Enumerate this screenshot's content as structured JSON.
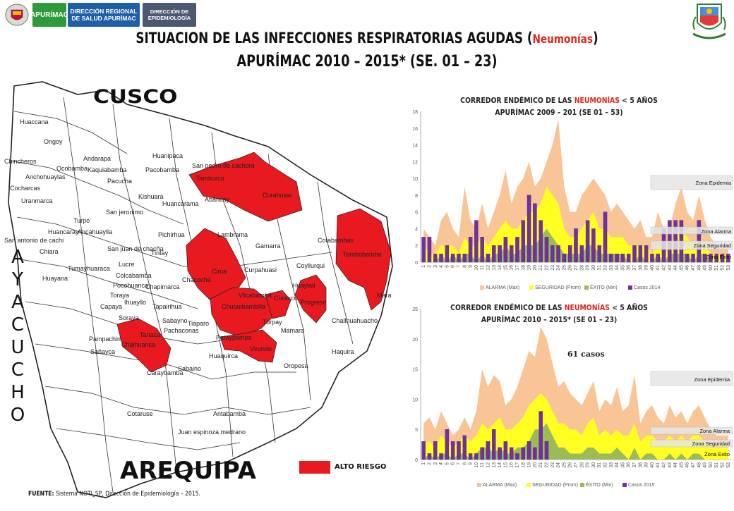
{
  "header": {
    "logo_apurimac": "APURÍMAC",
    "logo_diresa_line1": "DIRECCIÓN REGIONAL",
    "logo_diresa_line2": "DE SALUD APURÍMAC",
    "logo_epi_line1": "DIRECCIÓN DE",
    "logo_epi_line2": "EPIDEMIOLOGÍA",
    "title_line1_pre": "SITUACION DE LAS INFECCIONES RESPIRATORIAS AGUDAS (",
    "title_line1_red": "Neumonías",
    "title_line1_post": ")",
    "title_line2": "APURÍMAC 2010 – 2015*  (SE. 01 – 23)"
  },
  "map": {
    "region_north": "CUSCO",
    "region_south": "AREQUIPA",
    "region_west_letters": [
      "A",
      "Y",
      "A",
      "C",
      "U",
      "C",
      "H",
      "O"
    ],
    "legend_label": "ALTO RIESGO",
    "legend_color": "#e8191f",
    "district_labels": [
      "Huaccana",
      "Ongoy",
      "Chincheros",
      "Ocobamba",
      "Andarapa",
      "Kaquiabamba",
      "Huanipaca",
      "San pedro de cachora",
      "Anchohuaylas",
      "Cocharcas",
      "Uranmarca",
      "Pacucha",
      "Pacobamba",
      "Tamburco",
      "Curahuasi",
      "Abancay",
      "Kishuara",
      "Huancarama",
      "Turpo",
      "San jeronimo",
      "Huancaray",
      "Ancahuaylla",
      "San antonio de cachi",
      "Pichirhua",
      "Lambrama",
      "Chiara",
      "San juan de chacña",
      "Tintay",
      "Gamarra",
      "Cotabambas",
      "Tambobamba",
      "Huayana",
      "Tumayhuaraca",
      "Lucre",
      "Colcabamba",
      "Pocohuanca",
      "Circa",
      "Curpahuasi",
      "Coyllurqui",
      "Toraya",
      "Chapimarca",
      "Chacoche",
      "Huaylati",
      "Mara",
      "Chuquibambilla",
      "Vilcabamba",
      "Curasco",
      "Progreso",
      "Soraya",
      "Capaya",
      "Ihuayllo",
      "Tapairihua",
      "Sabayno",
      "Tiaparo",
      "Pachaconas",
      "Turpay",
      "Mamara",
      "Challhuahuacho",
      "Pampachiri",
      "Sañayca",
      "Tanaca",
      "Chalhuanca",
      "Pataypampa",
      "Virundo",
      "Haquira",
      "Caraybamba",
      "Sabaino",
      "Huaquirca",
      "Oropesa",
      "Antabamba",
      "Cotaruse",
      "Juan espinoza medrano"
    ]
  },
  "legend_common": {
    "alarma": "ALARMA (Max)",
    "seguridad": "SEGURIDAD (Prom)",
    "exito": "ÉXITO (Min)"
  },
  "zones": {
    "epidemia": "Zona Epidemia",
    "alarma": "Zona Alarma",
    "seguridad": "Zona Seguridad",
    "exito": "Zona Exito"
  },
  "colors": {
    "alarma": "#f9c596",
    "seguridad": "#ffff21",
    "exito": "#9bbb59",
    "casos": "#7030a0",
    "highrisk": "#e8191f",
    "zone_box": "#e5e5e5"
  },
  "footer": {
    "source_label": "FUENTE:",
    "source_text": "Sistema NOTI_SP, Dirección de Epidemiología – 2015."
  },
  "chart_data": [
    {
      "type": "area",
      "title_pre": "CORREDOR ENDÉMICO DE LAS ",
      "title_red": "NEUMONÍAS",
      "title_post": " < 5 AÑOS",
      "title_line2": "APURÍMAC 2009 – 201 (SE  01 – 53)",
      "ylim": [
        0,
        18
      ],
      "yticks": [
        0,
        2,
        4,
        6,
        8,
        10,
        12,
        14,
        16,
        18
      ],
      "x": [
        1,
        2,
        3,
        4,
        5,
        6,
        7,
        8,
        9,
        10,
        11,
        12,
        13,
        14,
        15,
        16,
        17,
        18,
        19,
        20,
        21,
        22,
        23,
        24,
        25,
        26,
        27,
        28,
        29,
        30,
        31,
        32,
        33,
        34,
        35,
        36,
        37,
        38,
        39,
        40,
        41,
        42,
        43,
        44,
        45,
        46,
        47,
        48,
        49,
        50,
        51,
        52,
        53
      ],
      "legend_casos": "Casos 2014",
      "series": [
        {
          "name": "ALARMA (Max)",
          "values": [
            4,
            3,
            2,
            5,
            6,
            4,
            3,
            9,
            5,
            4,
            7,
            4,
            6,
            8,
            11,
            7,
            9,
            10,
            12,
            9,
            10,
            12,
            14,
            17,
            9,
            6,
            6,
            8,
            9,
            10,
            9,
            8,
            6,
            7,
            6,
            5,
            4,
            5,
            3,
            3,
            6,
            4,
            4,
            7,
            9,
            6,
            5,
            8,
            5,
            3,
            2,
            2,
            2
          ]
        },
        {
          "name": "SEGURIDAD (Prom)",
          "values": [
            2,
            1,
            1,
            2,
            2,
            2,
            1,
            3,
            2,
            2,
            3,
            2,
            3,
            4,
            5,
            4,
            4,
            5,
            6,
            6,
            7,
            9,
            8,
            7,
            4,
            3,
            3,
            4,
            5,
            6,
            4,
            4,
            3,
            3,
            3,
            2,
            2,
            2,
            2,
            1,
            2,
            2,
            2,
            3,
            4,
            3,
            2,
            3,
            2,
            1,
            1,
            1,
            1
          ]
        },
        {
          "name": "ÉXITO (Min)",
          "values": [
            0,
            0,
            0,
            1,
            0,
            1,
            0,
            1,
            1,
            0,
            1,
            0,
            1,
            1,
            2,
            1,
            1,
            2,
            2,
            2,
            3,
            4,
            3,
            2,
            1,
            1,
            1,
            1,
            2,
            2,
            1,
            1,
            1,
            1,
            1,
            0,
            0,
            1,
            0,
            0,
            1,
            0,
            1,
            1,
            1,
            1,
            0,
            1,
            1,
            0,
            0,
            0,
            0
          ]
        },
        {
          "name": "Casos 2014",
          "values": [
            3,
            3,
            1,
            1,
            2,
            1,
            1,
            1,
            3,
            5,
            3,
            1,
            2,
            2,
            3,
            2,
            3,
            5,
            8,
            7,
            5,
            3,
            2,
            2,
            1,
            2,
            4,
            2,
            5,
            4,
            2,
            6,
            1,
            1,
            1,
            1,
            2,
            2,
            2,
            1,
            1,
            4,
            5,
            5,
            5,
            1,
            1,
            5,
            1,
            1,
            1,
            1,
            1
          ]
        }
      ],
      "zones": [
        "Zona Epidemia",
        "Zona Alarma",
        "Zona Seguridad",
        "Zona Exito"
      ]
    },
    {
      "type": "area",
      "title_pre": "CORREDOR ENDÉMICO DE LAS ",
      "title_red": "NEUMONÍAS",
      "title_post": " < 5 AÑOS",
      "title_line2": "APURÍMAC 2010 – 2015* (SE  01 – 23)",
      "annotation": "61 casos",
      "ylim": [
        0,
        25
      ],
      "yticks": [
        0,
        5,
        10,
        15,
        20,
        25
      ],
      "x": [
        1,
        2,
        3,
        4,
        5,
        6,
        7,
        8,
        9,
        10,
        11,
        12,
        13,
        14,
        15,
        16,
        17,
        18,
        19,
        20,
        21,
        22,
        23,
        24,
        25,
        26,
        27,
        28,
        29,
        30,
        31,
        32,
        33,
        34,
        35,
        36,
        37,
        38,
        39,
        40,
        41,
        42,
        43,
        44,
        45,
        46,
        47,
        48,
        49,
        50,
        51,
        52,
        53
      ],
      "legend_casos": "Casos 2015",
      "series": [
        {
          "name": "ALARMA (Max)",
          "values": [
            6,
            7,
            5,
            8,
            6,
            4,
            5,
            7,
            5,
            8,
            15,
            12,
            14,
            13,
            9,
            10,
            12,
            15,
            18,
            17,
            22,
            20,
            16,
            12,
            13,
            11,
            10,
            9,
            11,
            13,
            8,
            10,
            9,
            12,
            8,
            9,
            14,
            6,
            8,
            9,
            7,
            6,
            9,
            7,
            8,
            6,
            8,
            9,
            7,
            5,
            4,
            4,
            4
          ]
        },
        {
          "name": "SEGURIDAD (Prom)",
          "values": [
            3,
            3,
            2,
            4,
            3,
            2,
            3,
            4,
            3,
            4,
            6,
            5,
            6,
            7,
            5,
            5,
            6,
            7,
            9,
            10,
            11,
            10,
            8,
            6,
            6,
            5,
            5,
            4,
            6,
            7,
            4,
            5,
            4,
            5,
            4,
            4,
            6,
            3,
            4,
            4,
            3,
            3,
            4,
            3,
            4,
            3,
            4,
            4,
            3,
            2,
            2,
            2,
            2
          ]
        },
        {
          "name": "ÉXITO (Min)",
          "values": [
            0,
            1,
            0,
            1,
            1,
            0,
            1,
            1,
            0,
            1,
            2,
            2,
            1,
            2,
            1,
            1,
            2,
            2,
            3,
            5,
            5,
            6,
            4,
            2,
            2,
            1,
            1,
            1,
            2,
            2,
            1,
            1,
            1,
            2,
            1,
            0,
            2,
            0,
            1,
            1,
            0,
            0,
            1,
            0,
            1,
            0,
            1,
            1,
            0,
            0,
            0,
            0,
            0
          ]
        },
        {
          "name": "Casos 2015",
          "values": [
            3,
            1,
            3,
            1,
            5,
            3,
            3,
            4,
            1,
            1,
            2,
            3,
            5,
            2,
            3,
            2,
            1,
            2,
            3,
            2,
            8,
            3,
            0,
            0,
            0,
            0,
            0,
            0,
            0,
            0,
            0,
            0,
            0,
            0,
            0,
            0,
            0,
            0,
            0,
            0,
            0,
            0,
            0,
            0,
            0,
            0,
            0,
            0,
            0,
            0,
            0,
            0,
            0
          ]
        }
      ],
      "zones": [
        "Zona Epidemia",
        "Zona Alarma",
        "Zona Seguridad",
        "Zona Exito"
      ]
    }
  ]
}
